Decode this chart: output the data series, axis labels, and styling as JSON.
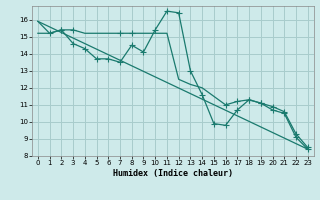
{
  "xlabel": "Humidex (Indice chaleur)",
  "bg_color": "#ceeaea",
  "grid_color": "#a8cccc",
  "line_color": "#1a7a6e",
  "xlim": [
    -0.5,
    23.5
  ],
  "ylim": [
    8,
    16.8
  ],
  "yticks": [
    8,
    9,
    10,
    11,
    12,
    13,
    14,
    15,
    16
  ],
  "xticks": [
    0,
    1,
    2,
    3,
    4,
    5,
    6,
    7,
    8,
    9,
    10,
    11,
    12,
    13,
    14,
    15,
    16,
    17,
    18,
    19,
    20,
    21,
    22,
    23
  ],
  "line1_x": [
    0,
    1,
    2,
    3,
    4,
    5,
    6,
    7,
    8,
    9,
    10,
    11,
    12,
    13,
    14,
    15,
    16,
    17,
    18,
    19,
    20,
    21,
    22,
    23
  ],
  "line1_y": [
    15.9,
    15.2,
    15.4,
    14.6,
    14.3,
    13.7,
    13.7,
    13.5,
    14.5,
    14.1,
    15.4,
    16.5,
    16.4,
    13.0,
    11.6,
    9.9,
    9.8,
    10.7,
    11.3,
    11.1,
    10.7,
    10.5,
    9.1,
    8.4
  ],
  "line2_x": [
    0,
    1,
    2,
    3,
    4,
    5,
    6,
    7,
    8,
    9,
    10,
    11,
    12,
    13,
    14,
    15,
    16,
    17,
    18,
    19,
    20,
    21,
    22,
    23
  ],
  "line2_y": [
    15.2,
    15.2,
    15.4,
    15.4,
    15.2,
    15.2,
    15.2,
    15.2,
    15.2,
    15.2,
    15.2,
    15.2,
    12.5,
    12.2,
    12.0,
    11.5,
    11.0,
    11.2,
    11.3,
    11.1,
    10.9,
    10.6,
    9.3,
    8.5
  ],
  "line3_x": [
    0,
    23
  ],
  "line3_y": [
    15.9,
    8.4
  ],
  "marker1_x": [
    1,
    2,
    3,
    4,
    5,
    6,
    7,
    8,
    9,
    10,
    11,
    12,
    13,
    14,
    15,
    16,
    17,
    18,
    19,
    20,
    21,
    22,
    23
  ],
  "marker1_y": [
    15.2,
    15.4,
    14.6,
    14.3,
    13.7,
    13.7,
    13.5,
    14.5,
    14.1,
    15.4,
    16.5,
    16.4,
    13.0,
    11.6,
    9.9,
    9.8,
    10.7,
    11.3,
    11.1,
    10.7,
    10.5,
    9.1,
    8.4
  ],
  "marker2_x": [
    2,
    3,
    7,
    8,
    16,
    17,
    18,
    19,
    20,
    21,
    22,
    23
  ],
  "marker2_y": [
    15.4,
    15.4,
    15.2,
    15.2,
    11.0,
    11.2,
    11.3,
    11.1,
    10.9,
    10.6,
    9.3,
    8.5
  ]
}
